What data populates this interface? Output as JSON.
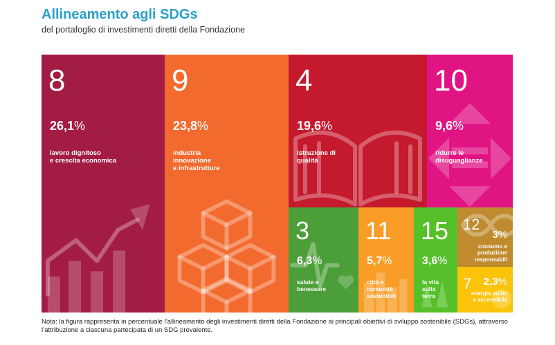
{
  "header": {
    "title": "Allineamento agli SDGs",
    "subtitle": "del portafoglio di investimenti diretti della Fondazione"
  },
  "chart_data": {
    "type": "treemap",
    "title": "Allineamento agli SDGs",
    "subtitle": "del portafoglio di investimenti diretti della Fondazione",
    "unit": "%",
    "items": [
      {
        "sdg": "8",
        "value": 26.1,
        "value_label": "26,1",
        "label": "lavoro dignitoso\ne crescita economica",
        "color": "#a31c44",
        "icon": "growth-chart-icon"
      },
      {
        "sdg": "9",
        "value": 23.8,
        "value_label": "23,8",
        "label": "industria\ninnovazione\ne infrastrutture",
        "color": "#f26a2e",
        "icon": "cubes-icon"
      },
      {
        "sdg": "4",
        "value": 19.6,
        "value_label": "19,6",
        "label": "istruzione di\nqualità",
        "color": "#c5192d",
        "icon": "open-book-icon"
      },
      {
        "sdg": "10",
        "value": 9.6,
        "value_label": "9,6",
        "label": "ridurre le\ndisuguaglianze",
        "color": "#e11484",
        "icon": "equality-arrows-icon"
      },
      {
        "sdg": "3",
        "value": 6.3,
        "value_label": "6,3",
        "label": "salute e\nbenessere",
        "color": "#4c9f38",
        "icon": "heartbeat-icon"
      },
      {
        "sdg": "11",
        "value": 5.7,
        "value_label": "5,7",
        "label": "città e\ncomunità\nsostenibili",
        "color": "#f99d26",
        "icon": "city-icon"
      },
      {
        "sdg": "15",
        "value": 3.6,
        "value_label": "3,6",
        "label": "la vita\nsulla\nterra",
        "color": "#56c02b",
        "icon": "tree-icon"
      },
      {
        "sdg": "12",
        "value": 3,
        "value_label": "3",
        "label": "consumo e\nproduzione\nresponsabili",
        "color": "#bf8b2e",
        "icon": "infinity-icon"
      },
      {
        "sdg": "7",
        "value": 2.3,
        "value_label": "2,3",
        "label": "energia pulita\ne accessibile",
        "color": "#fcc30b",
        "icon": "sun-icon"
      }
    ]
  },
  "note": "Nota: la figura rappresenta in percentuale l’allineamento degli investimenti diretti della Fondazione ai principali obiettivi di  sviluppo sostenibile (SDGs), attraverso l’attribuzione a ciascuna partecipata di un SDG prevalente."
}
